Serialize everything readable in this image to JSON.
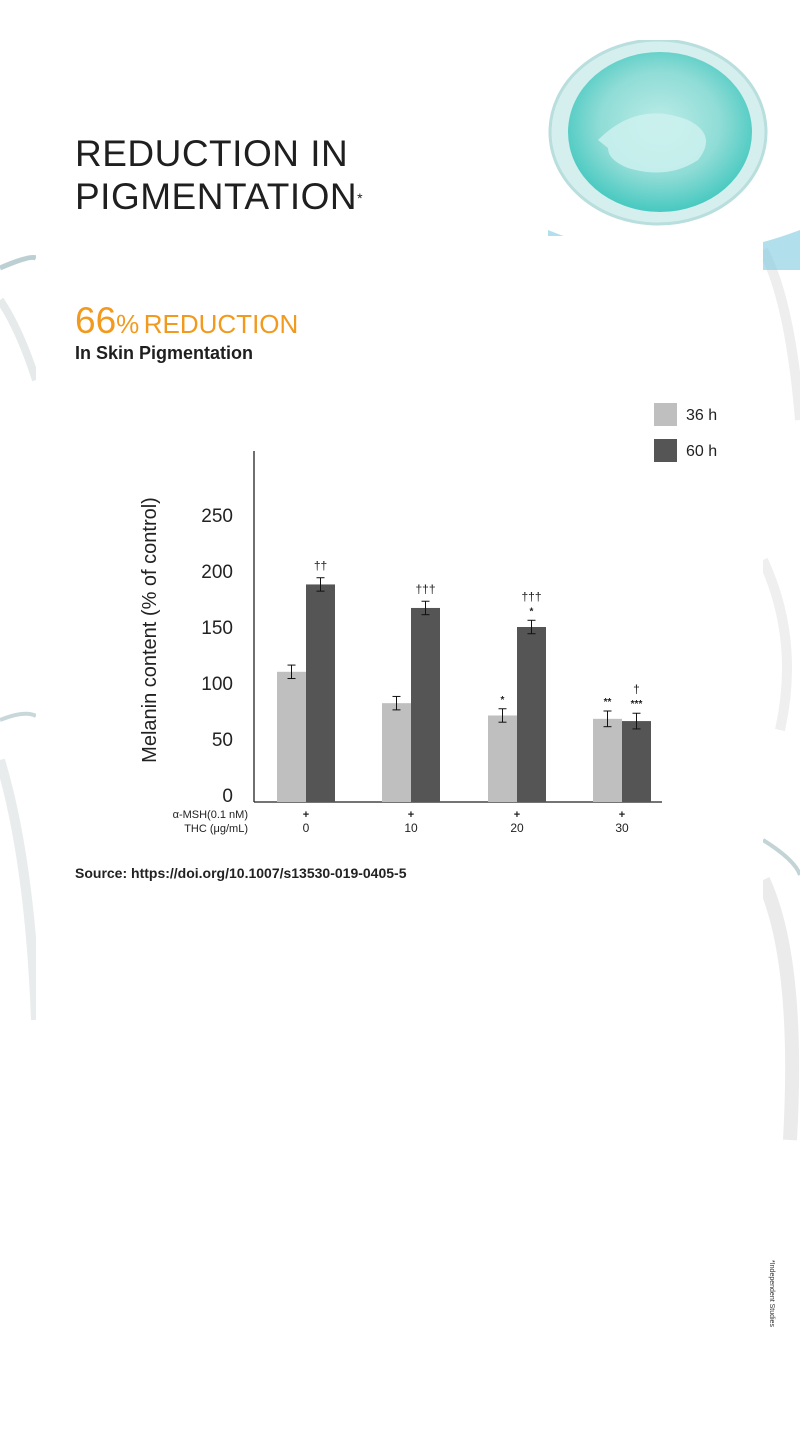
{
  "header": {
    "title_line1": "REDUCTION IN",
    "title_line2": "PIGMENTATION",
    "title_mark": "*"
  },
  "stat": {
    "number": "66",
    "percent_sign": "%",
    "word": "REDUCTION",
    "subtitle": "In Skin Pigmentation",
    "accent_color": "#f29a1e"
  },
  "chart_data": {
    "type": "bar",
    "ylabel": "Melanin content (% of control)",
    "ylim": [
      0,
      280
    ],
    "yticks": [
      0,
      50,
      100,
      150,
      200,
      250
    ],
    "legend_position": "top-right",
    "row_labels": [
      "α-MSH(0.1 nM)",
      "THC (μg/mL)"
    ],
    "categories": [
      "0",
      "10",
      "20",
      "30"
    ],
    "msh_marks": [
      "+",
      "+",
      "+",
      "+"
    ],
    "series": [
      {
        "name": "36 h",
        "color": "#c0bfbf",
        "values": [
          110,
          82,
          71,
          68
        ],
        "errors": [
          6,
          6,
          6,
          7
        ],
        "annotations": [
          "",
          "",
          "*",
          "**"
        ]
      },
      {
        "name": "60 h",
        "color": "#555555",
        "values": [
          188,
          167,
          150,
          66
        ],
        "errors": [
          6,
          6,
          6,
          7
        ],
        "annotations": [
          "††",
          "†††",
          "*",
          "***"
        ],
        "annotations_top": [
          "",
          "",
          "†††",
          "†"
        ]
      }
    ]
  },
  "footer": {
    "source": "Source: https://doi.org/10.1007/s13530-019-0405-5",
    "side_note": "*Independent Studies"
  }
}
